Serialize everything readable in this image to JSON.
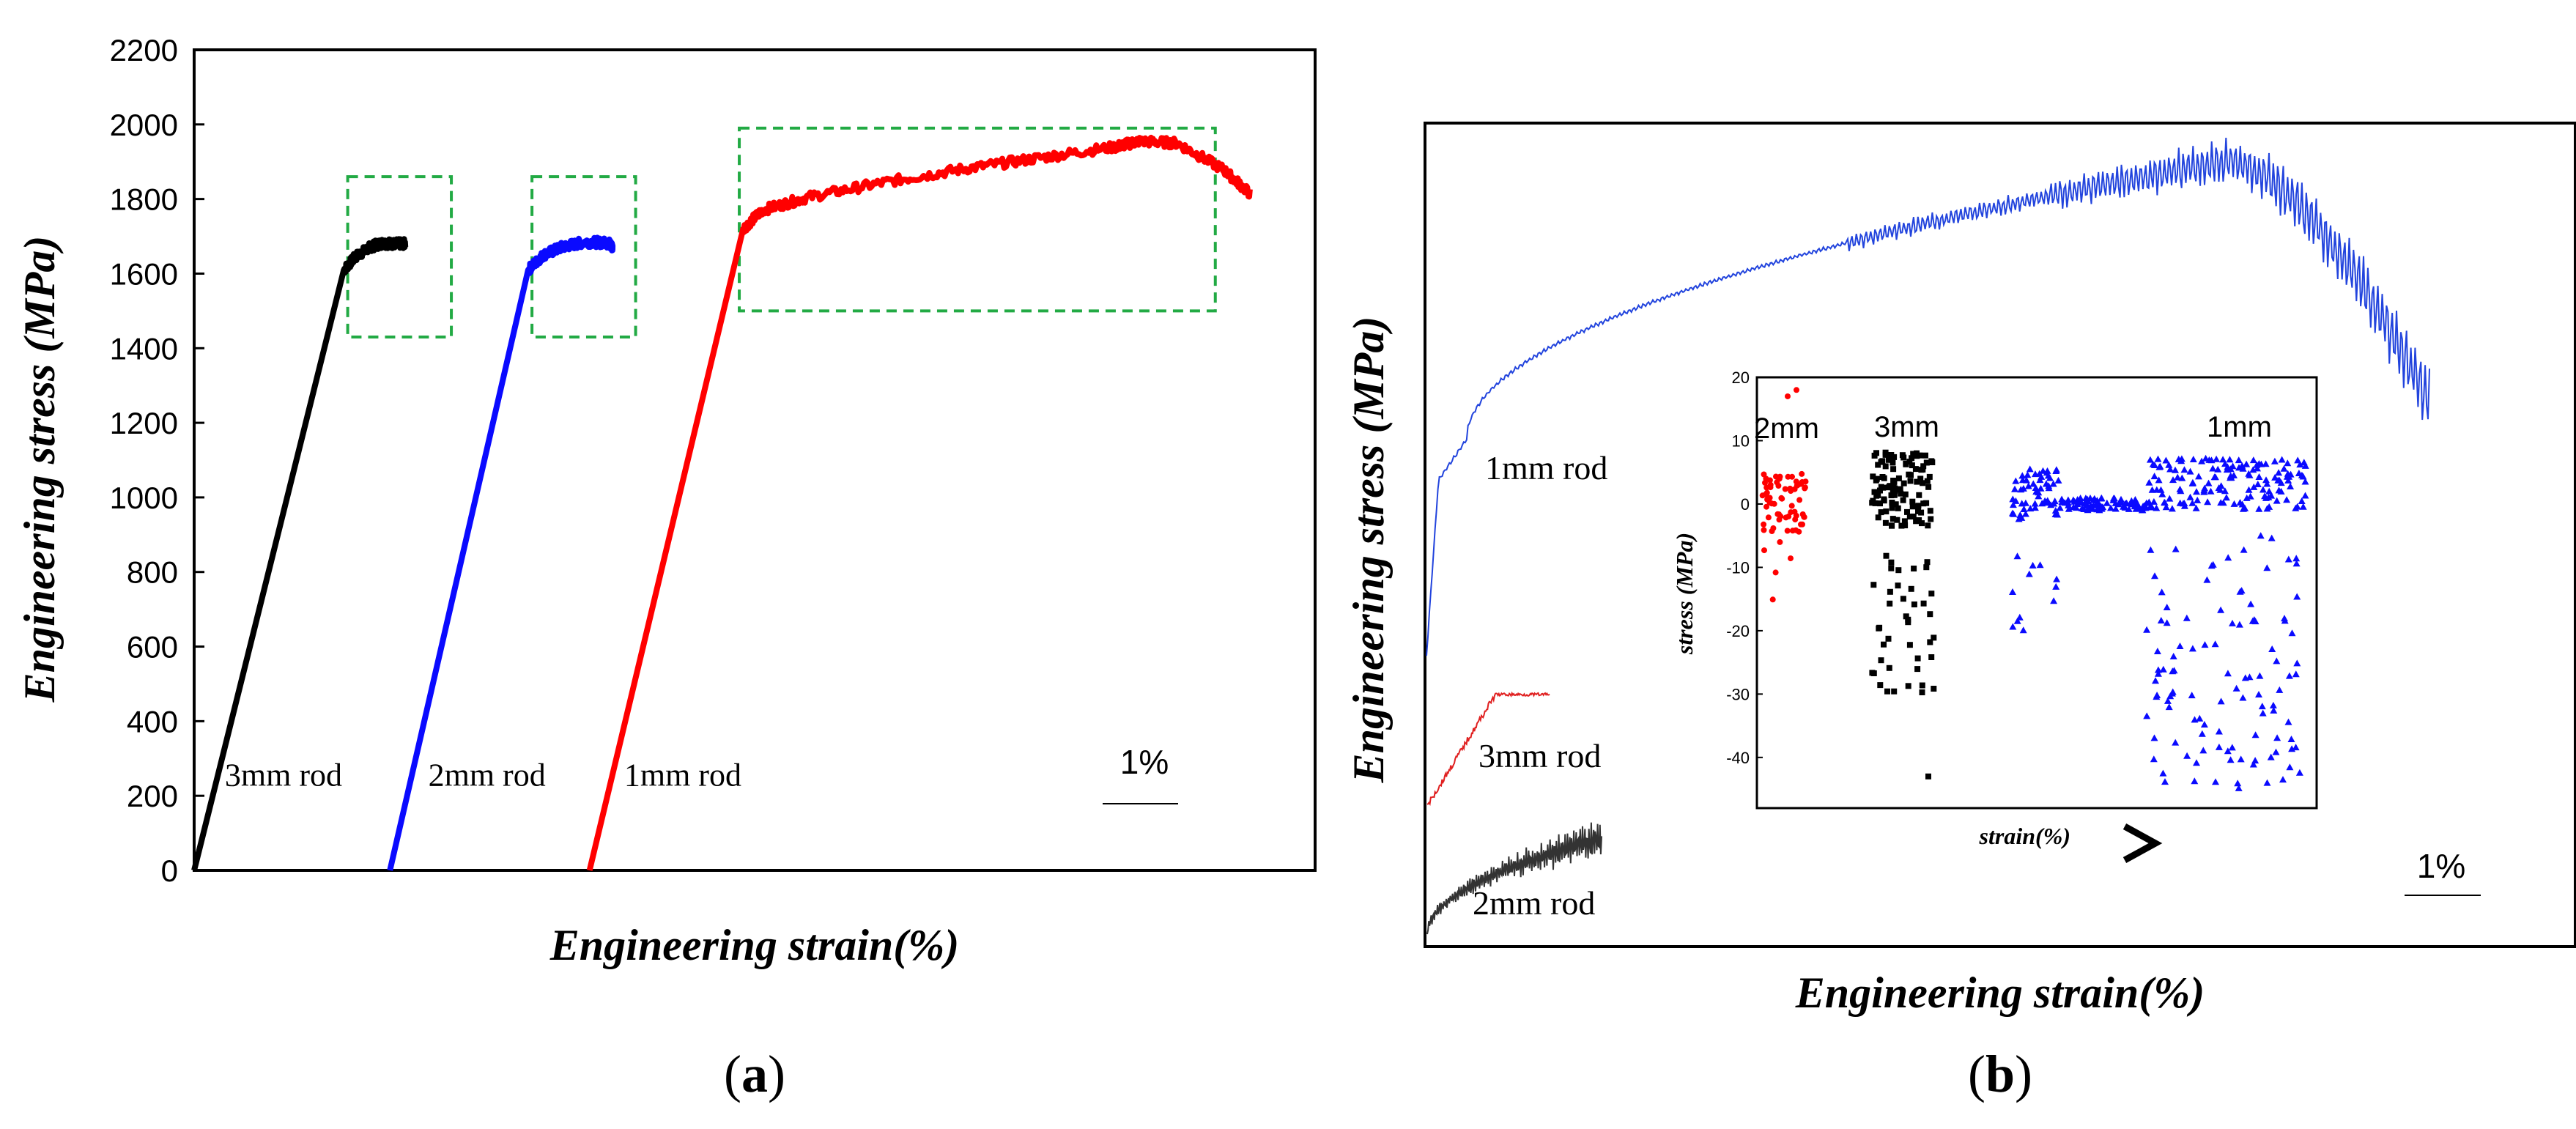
{
  "colors": {
    "black": "#000000",
    "blue": "#0a0aff",
    "red": "#ff0000",
    "green_dashed": "#22aa44",
    "thin_blue": "#2244dd",
    "thin_red": "#e02020",
    "thin_black": "#333333"
  },
  "chart_data": [
    {
      "type": "line",
      "panel_label_left": "(",
      "panel_label": "a",
      "panel_label_right": ")",
      "title": "",
      "xlabel": "Engineering strain(%)",
      "ylabel_part1": "Engineering stress (",
      "ylabel_part2": "MPa",
      "ylabel_part3": ")",
      "ylim": [
        0,
        2200
      ],
      "yticks": [
        "0",
        "200",
        "400",
        "600",
        "800",
        "1000",
        "1200",
        "1400",
        "1600",
        "1800",
        "2000",
        "2200"
      ],
      "xlim": [
        0,
        14.6
      ],
      "x_ticks_visible": false,
      "scale_bar_label": "1%",
      "scale_bar_length_pct": 1,
      "series": [
        {
          "name": "3mm rod",
          "color": "black",
          "x": [
            0,
            1.95,
            2.1,
            2.3,
            2.45,
            2.6,
            2.75
          ],
          "y": [
            0,
            1610,
            1645,
            1672,
            1682,
            1680,
            1680
          ]
        },
        {
          "name": "2mm rod",
          "color": "blue",
          "x": [
            2.55,
            4.35,
            4.55,
            4.8,
            5.1,
            5.4,
            5.45
          ],
          "y": [
            0,
            1610,
            1650,
            1672,
            1685,
            1682,
            1670
          ]
        },
        {
          "name": "1mm rod",
          "color": "red",
          "x": [
            5.15,
            7.15,
            7.4,
            8.0,
            9.0,
            10.0,
            11.0,
            12.0,
            12.3,
            12.8,
            13.4,
            13.75
          ],
          "y": [
            0,
            1720,
            1770,
            1805,
            1845,
            1880,
            1910,
            1940,
            1955,
            1950,
            1880,
            1815
          ]
        }
      ],
      "annotations": [
        {
          "text": "3mm rod",
          "x": 0.4,
          "y": 250
        },
        {
          "text": "2mm rod",
          "x": 3.05,
          "y": 250
        },
        {
          "text": "1mm rod",
          "x": 5.6,
          "y": 250
        }
      ],
      "dashed_boxes": [
        {
          "x": [
            2.0,
            3.35
          ],
          "y": [
            1430,
            1860
          ]
        },
        {
          "x": [
            4.4,
            5.75
          ],
          "y": [
            1430,
            1860
          ]
        },
        {
          "x": [
            7.1,
            13.3
          ],
          "y": [
            1500,
            1990
          ]
        }
      ]
    },
    {
      "type": "line",
      "panel_label_left": "(",
      "panel_label": "b",
      "panel_label_right": ")",
      "xlabel": "Engineering strain(%)",
      "ylabel_part1": "Engineering stress (",
      "ylabel_part2": "MPa",
      "ylabel_part3": ")",
      "ticks_visible": false,
      "scale_bar_label": "1%",
      "series": [
        {
          "name": "1mm rod",
          "color": "thin_blue"
        },
        {
          "name": "3mm rod",
          "color": "thin_red"
        },
        {
          "name": "2mm rod",
          "color": "thin_black"
        }
      ],
      "inset": {
        "type": "scatter",
        "xlabel": "strain(%)",
        "ylabel_part1": "stress (",
        "ylabel_part2": "MPa",
        "ylabel_part3": ")",
        "ylim": [
          -48,
          20
        ],
        "yticks": [
          "20",
          "10",
          "0",
          "-10",
          "-20",
          "-30",
          "-40"
        ],
        "groups": [
          {
            "name": "2mm",
            "color": "red",
            "marker": "circle"
          },
          {
            "name": "3mm",
            "color": "black",
            "marker": "square"
          },
          {
            "name": "1mm",
            "color": "blue",
            "marker": "triangle"
          }
        ]
      }
    }
  ]
}
